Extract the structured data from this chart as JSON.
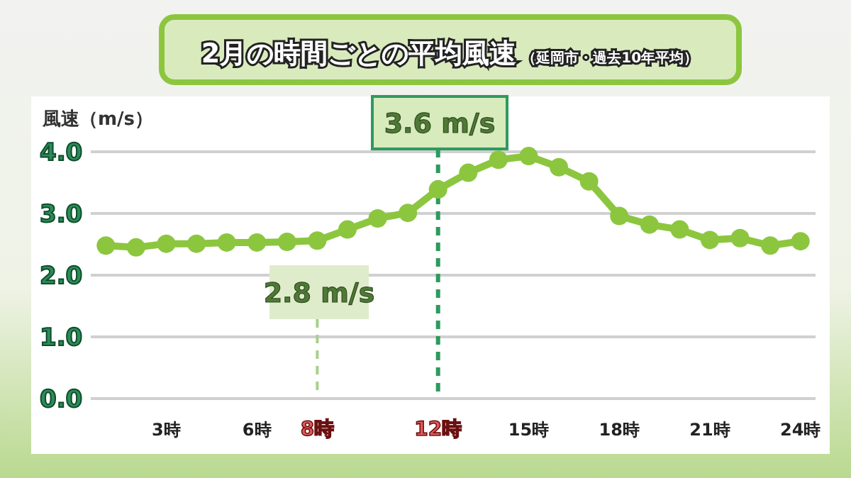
{
  "chart_data": {
    "type": "line",
    "title": "2月の時間ごとの平均風速",
    "subtitle": "（延岡市・過去10年平均）",
    "ylabel": "風速（m/s）",
    "x": [
      1,
      2,
      3,
      4,
      5,
      6,
      7,
      8,
      9,
      10,
      11,
      12,
      13,
      14,
      15,
      16,
      17,
      18,
      19,
      20,
      21,
      22,
      23,
      24
    ],
    "series": [
      {
        "color": "#8cc63f",
        "values": [
          2.48,
          2.45,
          2.51,
          2.51,
          2.53,
          2.53,
          2.54,
          2.56,
          2.74,
          2.92,
          3.01,
          3.39,
          3.66,
          3.87,
          3.93,
          3.75,
          3.52,
          2.96,
          2.82,
          2.74,
          2.57,
          2.6,
          2.48,
          2.55
        ]
      }
    ],
    "xlim": [
      0.5,
      24.5
    ],
    "xticks": [
      {
        "value": 3,
        "label": "3時"
      },
      {
        "value": 6,
        "label": "6時"
      },
      {
        "value": 8,
        "label": "8時"
      },
      {
        "value": 12,
        "label": "12時"
      },
      {
        "value": 15,
        "label": "15時"
      },
      {
        "value": 18,
        "label": "18時"
      },
      {
        "value": 21,
        "label": "21時"
      },
      {
        "value": 24,
        "label": "24時"
      }
    ],
    "ylim": [
      0,
      4
    ],
    "yticks": [
      {
        "value": 0,
        "label": "0.0"
      },
      {
        "value": 1,
        "label": "1.0"
      },
      {
        "value": 2,
        "label": "2.0"
      },
      {
        "value": 3,
        "label": "3.0"
      },
      {
        "value": 4,
        "label": "4.0"
      }
    ],
    "grid": "y",
    "marker": "circle",
    "line_style": "solid",
    "ref_lines": [
      {
        "axis": "x",
        "value": 8,
        "label": "2.8 m/s",
        "color": "#a8d08d",
        "line_style": "dashed"
      },
      {
        "axis": "x",
        "value": 12,
        "label": "3.6 m/s",
        "color": "#2e9a5e",
        "line_style": "dashed"
      }
    ]
  }
}
